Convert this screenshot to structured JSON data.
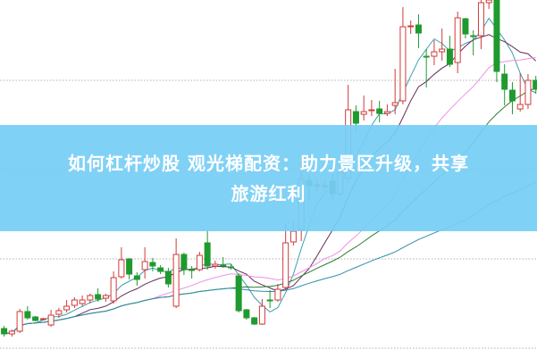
{
  "banner": {
    "title_line1": "如何杠杆炒股 观光梯配资：助力景区升级，共享",
    "title_line2": "旅游红利"
  },
  "colors": {
    "up": "#d23a3a",
    "down": "#1f9a2e",
    "banner": "#76cef5",
    "grid": "#b0b0b0",
    "ma": [
      "#3a9fb0",
      "#6a2a5c",
      "#ee92e6",
      "#2f7d32",
      "#2c8ea8"
    ]
  },
  "chart_data": {
    "type": "candlestick",
    "title": "",
    "xlabel": "",
    "ylabel": "",
    "ylim": [
      0,
      40
    ],
    "grid": true,
    "grid_levels": [
      31,
      21,
      11,
      1
    ],
    "moving_average_periods": [
      5,
      10,
      20,
      30,
      60
    ],
    "candles_ohlc": [
      [
        3.2,
        3.5,
        2.3,
        2.6
      ],
      [
        2.6,
        3.1,
        2.3,
        2.9
      ],
      [
        2.9,
        5.4,
        2.7,
        5.1
      ],
      [
        5.1,
        5.7,
        4.2,
        4.4
      ],
      [
        4.5,
        4.6,
        4.0,
        4.1
      ],
      [
        4.2,
        4.4,
        4.1,
        4.3
      ],
      [
        3.6,
        5.3,
        3.4,
        4.7
      ],
      [
        4.8,
        5.5,
        4.4,
        5.2
      ],
      [
        5.3,
        6.4,
        5.0,
        5.7
      ],
      [
        5.8,
        6.7,
        5.5,
        6.4
      ],
      [
        6.0,
        6.9,
        5.7,
        6.4
      ],
      [
        6.4,
        7.1,
        6.0,
        6.9
      ],
      [
        7.0,
        7.7,
        6.2,
        6.5
      ],
      [
        6.6,
        7.1,
        6.2,
        6.9
      ],
      [
        6.3,
        9.6,
        6.0,
        8.9
      ],
      [
        9.0,
        12.3,
        8.8,
        10.9
      ],
      [
        11.0,
        11.1,
        8.7,
        9.3
      ],
      [
        9.1,
        9.5,
        8.0,
        8.7
      ],
      [
        9.8,
        12.3,
        8.8,
        10.7
      ],
      [
        10.6,
        11.1,
        9.6,
        10.2
      ],
      [
        10.0,
        10.3,
        9.3,
        9.6
      ],
      [
        9.6,
        10.0,
        7.8,
        8.2
      ],
      [
        5.7,
        13.3,
        5.5,
        11.5
      ],
      [
        11.5,
        11.7,
        9.2,
        9.8
      ],
      [
        9.8,
        10.2,
        8.8,
        9.7
      ],
      [
        9.8,
        11.8,
        9.6,
        11.4
      ],
      [
        12.8,
        14.2,
        9.8,
        10.2
      ],
      [
        10.2,
        10.8,
        9.9,
        10.4
      ],
      [
        10.3,
        11.2,
        10.0,
        10.2
      ],
      [
        10.1,
        10.4,
        9.8,
        10.0
      ],
      [
        9.1,
        9.4,
        5.0,
        5.2
      ],
      [
        5.3,
        5.4,
        4.2,
        4.4
      ],
      [
        4.4,
        4.5,
        3.6,
        3.7
      ],
      [
        3.7,
        6.5,
        3.6,
        5.7
      ],
      [
        6.4,
        7.5,
        5.5,
        6.3
      ],
      [
        6.4,
        8.2,
        6.2,
        7.6
      ],
      [
        7.8,
        15.0,
        7.5,
        12.8
      ],
      [
        12.9,
        15.2,
        12.5,
        14.1
      ],
      [
        14.3,
        22.0,
        13.0,
        20.0
      ],
      [
        19.8,
        20.5,
        17.5,
        19.2
      ],
      [
        19.2,
        20.0,
        18.5,
        19.3
      ],
      [
        19.1,
        20.0,
        18.5,
        19.2
      ],
      [
        19.7,
        20.5,
        17.5,
        18.3
      ],
      [
        18.3,
        21.5,
        18.0,
        20.7
      ],
      [
        20.0,
        30.5,
        19.5,
        27.7
      ],
      [
        27.5,
        28.2,
        25.2,
        26.2
      ],
      [
        27.2,
        29.3,
        26.5,
        27.5
      ],
      [
        27.6,
        28.8,
        27.0,
        27.7
      ],
      [
        27.8,
        28.7,
        26.3,
        27.3
      ],
      [
        27.3,
        28.3,
        27.0,
        27.5
      ],
      [
        28.2,
        32.3,
        27.2,
        28.5
      ],
      [
        28.7,
        39.2,
        28.3,
        37.0
      ],
      [
        37.0,
        37.7,
        36.2,
        37.1
      ],
      [
        37.2,
        38.4,
        34.6,
        36.3
      ],
      [
        33.7,
        34.5,
        30.2,
        33.6
      ],
      [
        33.7,
        35.5,
        32.7,
        34.2
      ],
      [
        34.2,
        36.8,
        33.2,
        34.5
      ],
      [
        34.5,
        36.0,
        32.5,
        32.8
      ],
      [
        33.0,
        38.7,
        31.8,
        38.0
      ],
      [
        37.9,
        38.0,
        35.7,
        36.2
      ],
      [
        36.0,
        36.6,
        33.8,
        35.9
      ],
      [
        36.0,
        40.0,
        34.5,
        39.7
      ],
      [
        39.7,
        40.0,
        39.0,
        40.0
      ],
      [
        40.0,
        40.0,
        30.8,
        32.0
      ],
      [
        31.7,
        32.8,
        28.2,
        30.0
      ],
      [
        29.9,
        30.8,
        27.2,
        28.7
      ],
      [
        27.8,
        31.8,
        27.5,
        28.3
      ],
      [
        28.3,
        31.7,
        27.8,
        31.0
      ],
      [
        31.0,
        31.5,
        29.5,
        30.0
      ]
    ]
  }
}
